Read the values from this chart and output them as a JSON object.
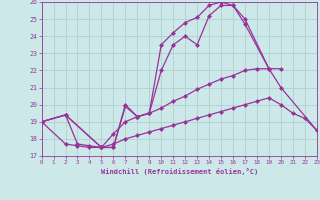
{
  "xlabel": "Windchill (Refroidissement éolien,°C)",
  "bg_color": "#cce8e8",
  "grid_color": "#aacccc",
  "line_color": "#993399",
  "xlim": [
    0,
    23
  ],
  "ylim": [
    17,
    26
  ],
  "xticks": [
    0,
    1,
    2,
    3,
    4,
    5,
    6,
    7,
    8,
    9,
    10,
    11,
    12,
    13,
    14,
    15,
    16,
    17,
    18,
    19,
    20,
    21,
    22,
    23
  ],
  "yticks": [
    17,
    18,
    19,
    20,
    21,
    22,
    23,
    24,
    25,
    26
  ],
  "line1_x": [
    0,
    2,
    3,
    4,
    5,
    6,
    7,
    8,
    9,
    10,
    11,
    12,
    13,
    14,
    15,
    16,
    17,
    18,
    19,
    20
  ],
  "line1_y": [
    19,
    19.4,
    17.7,
    17.6,
    17.5,
    18.3,
    19.0,
    19.3,
    19.5,
    19.8,
    20.2,
    20.5,
    20.9,
    21.2,
    21.5,
    21.7,
    22.0,
    22.1,
    22.1,
    22.1
  ],
  "line2_x": [
    0,
    2,
    3,
    4,
    5,
    6,
    7,
    8,
    9,
    10,
    11,
    12,
    13,
    14,
    15,
    16,
    17,
    18,
    19,
    20,
    21,
    22,
    23
  ],
  "line2_y": [
    19,
    17.7,
    17.6,
    17.5,
    17.5,
    17.7,
    18.0,
    18.2,
    18.4,
    18.6,
    18.8,
    19.0,
    19.2,
    19.4,
    19.6,
    19.8,
    20.0,
    20.2,
    20.4,
    20.0,
    19.5,
    19.2,
    18.5
  ],
  "line3_x": [
    0,
    2,
    5,
    6,
    7,
    8,
    9,
    10,
    11,
    12,
    13,
    14,
    15,
    16,
    17,
    19,
    20,
    23
  ],
  "line3_y": [
    19,
    19.4,
    17.5,
    17.5,
    19.9,
    19.3,
    19.5,
    22.0,
    23.5,
    24.0,
    23.5,
    25.2,
    25.8,
    25.8,
    25.0,
    22.1,
    21.0,
    18.5
  ],
  "line4_x": [
    0,
    2,
    5,
    6,
    7,
    8,
    9,
    10,
    11,
    12,
    13,
    14,
    15,
    16,
    17,
    19
  ],
  "line4_y": [
    19,
    19.4,
    17.5,
    17.5,
    20.0,
    19.3,
    19.5,
    23.5,
    24.2,
    24.8,
    25.1,
    25.8,
    26.0,
    25.8,
    24.7,
    22.1
  ],
  "markersize": 2,
  "linewidth": 0.9
}
